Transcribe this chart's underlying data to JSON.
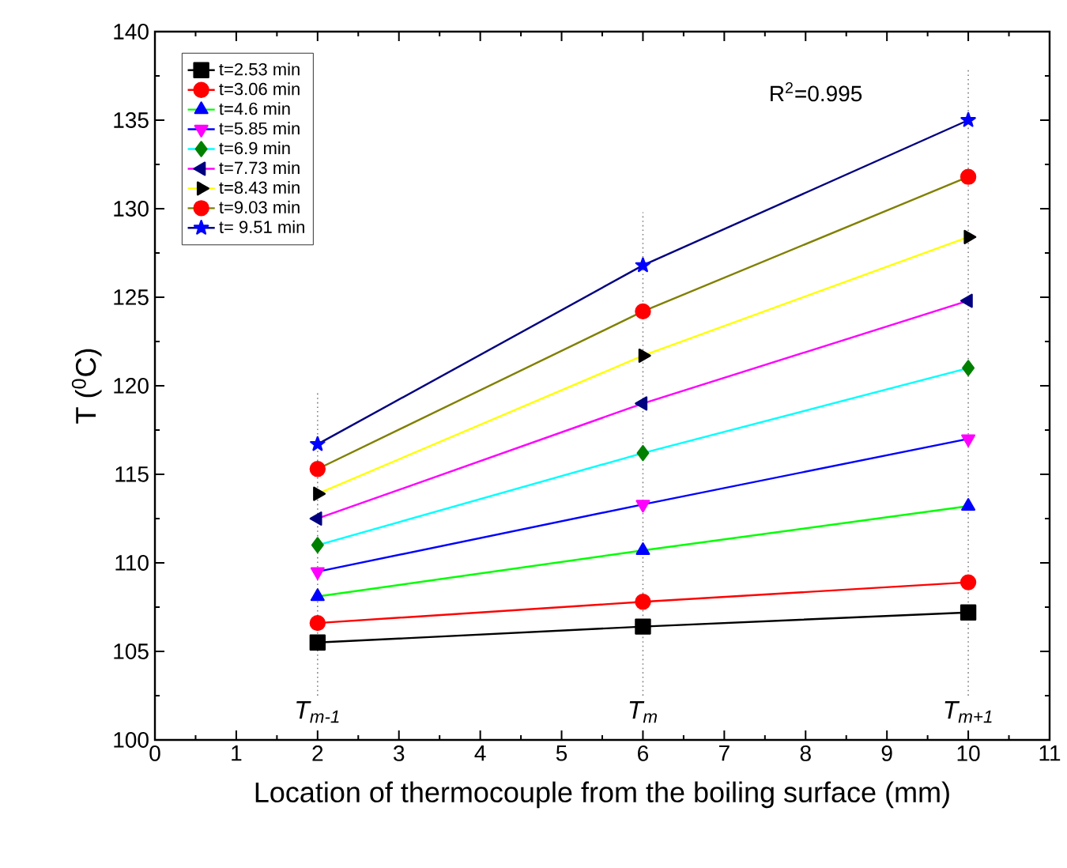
{
  "chart_data": {
    "type": "line",
    "xlabel": "Location of thermocouple from the boiling surface (mm)",
    "ylabel": "T ($^{0}$C)",
    "x": [
      2,
      6,
      10
    ],
    "xlim": [
      0,
      11
    ],
    "xticks": [
      0,
      1,
      2,
      3,
      4,
      5,
      6,
      7,
      8,
      9,
      10,
      11
    ],
    "ylim": [
      100,
      140
    ],
    "yticks": [
      100,
      105,
      110,
      115,
      120,
      125,
      130,
      135,
      140
    ],
    "legend": "top left",
    "grid": false,
    "line_style": "solid",
    "annotations": [
      "R$^{2}$=0.995"
    ],
    "ref_lines": [
      {
        "axis": "x",
        "value": 2,
        "label": "T$_{m-1}$",
        "line_style": "dotted",
        "color": "#808080"
      },
      {
        "axis": "x",
        "value": 6,
        "label": "T$_{m}$",
        "line_style": "dotted",
        "color": "#808080"
      },
      {
        "axis": "x",
        "value": 10,
        "label": "T$_{m+1}$",
        "line_style": "dotted",
        "color": "#808080"
      }
    ],
    "series": [
      {
        "name": "t=2.53 min",
        "color": "#000000",
        "marker": "square",
        "colors": [
          "#000000",
          "#000000",
          "#000000"
        ],
        "values": [
          105.5,
          106.4,
          107.2
        ]
      },
      {
        "name": "t=3.06 min",
        "color": "#ff0000",
        "marker": "circle",
        "colors": [
          "#ff0000",
          "#ff0000",
          "#ff0000"
        ],
        "values": [
          106.6,
          107.8,
          108.9
        ]
      },
      {
        "name": "t=4.6 min",
        "color": "#00ff00",
        "marker": "triangle",
        "colors": [
          "#0000ff",
          "#0000ff",
          "#0000ff"
        ],
        "values": [
          108.1,
          110.7,
          113.2
        ]
      },
      {
        "name": "t=5.85 min",
        "color": "#0000ff",
        "marker": "triangle-down",
        "colors": [
          "#ff00ff",
          "#ff00ff",
          "#ff00ff"
        ],
        "values": [
          109.5,
          113.3,
          117.0
        ]
      },
      {
        "name": "t=6.9 min",
        "color": "#00ffff",
        "marker": "diamond",
        "colors": [
          "#008000",
          "#008000",
          "#008000"
        ],
        "values": [
          111.0,
          116.2,
          121.0
        ]
      },
      {
        "name": "t=7.73 min",
        "color": "#ff00ff",
        "marker": "triangle-left",
        "colors": [
          "#000080",
          "#000080",
          "#000080"
        ],
        "values": [
          112.5,
          119.0,
          124.8
        ]
      },
      {
        "name": "t=8.43 min",
        "color": "#ffff00",
        "marker": "triangle-right",
        "colors": [
          "#000000",
          "#000000",
          "#000000"
        ],
        "values": [
          113.9,
          121.7,
          128.4
        ]
      },
      {
        "name": "t=9.03 min",
        "color": "#808000",
        "marker": "circle",
        "colors": [
          "#ff0000",
          "#ff0000",
          "#ff0000"
        ],
        "values": [
          115.3,
          124.2,
          131.8
        ]
      },
      {
        "name": "t= 9.51 min",
        "color": "#000080",
        "marker": "star",
        "colors": [
          "#0000ff",
          "#0000ff",
          "#0000ff"
        ],
        "values": [
          116.7,
          126.8,
          135.0
        ]
      }
    ]
  }
}
